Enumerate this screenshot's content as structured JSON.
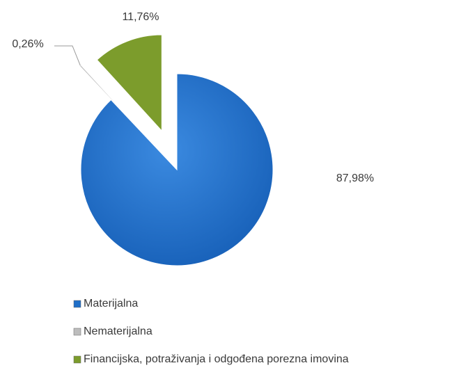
{
  "chart_data": {
    "type": "pie",
    "labels": [
      "Materijalna",
      "Nematerijalna",
      "Financijska, potraživanja i odgođena porezna imovina"
    ],
    "values": [
      87.98,
      0.26,
      11.76
    ],
    "value_labels": [
      "87,98%",
      "0,26%",
      "11,76%"
    ],
    "colors": [
      "#1f6fc8",
      "#bdbdbd",
      "#7c9c2c"
    ],
    "legend": "bottom"
  }
}
